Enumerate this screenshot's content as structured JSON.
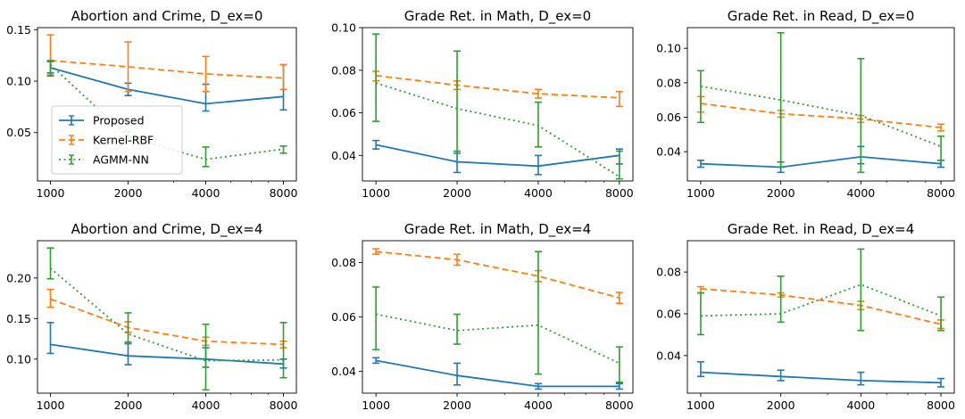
{
  "colors": {
    "Proposed": "#1f77b4",
    "Kernel-RBF": "#ff7f0e",
    "AGMM-NN": "#2ca02c"
  },
  "legend": [
    {
      "name": "Proposed",
      "style": "solid",
      "color": "#1f77b4"
    },
    {
      "name": "Kernel-RBF",
      "style": "dashed",
      "color": "#ff7f0e"
    },
    {
      "name": "AGMM-NN",
      "style": "dotted",
      "color": "#2ca02c"
    }
  ],
  "chart_data": [
    {
      "type": "line",
      "title": "Abortion and Crime, D_ex=0",
      "x": [
        1000,
        2000,
        4000,
        8000
      ],
      "xscale": "log2",
      "xticks": [
        "1000",
        "2000",
        "4000",
        "8000"
      ],
      "ylim": [
        0.003,
        0.152
      ],
      "yticks": [
        0.05,
        0.1,
        0.15
      ],
      "ytick_labels": [
        "0.05",
        "0.10",
        "0.15"
      ],
      "legend_position": "center-left",
      "series": [
        {
          "name": "Proposed",
          "values": [
            0.113,
            0.092,
            0.078,
            0.085
          ],
          "err_low": [
            0.108,
            0.086,
            0.071,
            0.072
          ],
          "err_high": [
            0.119,
            0.098,
            0.097,
            0.116
          ]
        },
        {
          "name": "Kernel-RBF",
          "values": [
            0.12,
            0.114,
            0.107,
            0.103
          ],
          "err_low": [
            0.106,
            0.09,
            0.09,
            0.092
          ],
          "err_high": [
            0.145,
            0.138,
            0.124,
            0.116
          ]
        },
        {
          "name": "AGMM-NN",
          "values": [
            0.116,
            0.046,
            0.024,
            0.034
          ],
          "err_low": [
            0.105,
            0.041,
            0.017,
            0.03
          ],
          "err_high": [
            0.12,
            0.051,
            0.036,
            0.037
          ]
        }
      ]
    },
    {
      "type": "line",
      "title": "Grade Ret. in Math, D_ex=0",
      "x": [
        1000,
        2000,
        4000,
        8000
      ],
      "xscale": "log2",
      "xticks": [
        "1000",
        "2000",
        "4000",
        "8000"
      ],
      "ylim": [
        0.028,
        0.1
      ],
      "yticks": [
        0.04,
        0.06,
        0.08,
        0.1
      ],
      "ytick_labels": [
        "0.04",
        "0.06",
        "0.08",
        "0.10"
      ],
      "series": [
        {
          "name": "Proposed",
          "values": [
            0.045,
            0.037,
            0.035,
            0.04
          ],
          "err_low": [
            0.043,
            0.032,
            0.031,
            0.036
          ],
          "err_high": [
            0.047,
            0.042,
            0.04,
            0.043
          ]
        },
        {
          "name": "Kernel-RBF",
          "values": [
            0.0775,
            0.073,
            0.069,
            0.067
          ],
          "err_low": [
            0.075,
            0.071,
            0.067,
            0.063
          ],
          "err_high": [
            0.0795,
            0.075,
            0.071,
            0.07
          ]
        },
        {
          "name": "AGMM-NN",
          "values": [
            0.074,
            0.062,
            0.054,
            0.03
          ],
          "err_low": [
            0.056,
            0.041,
            0.044,
            0.029
          ],
          "err_high": [
            0.097,
            0.089,
            0.065,
            0.042
          ]
        }
      ]
    },
    {
      "type": "line",
      "title": "Grade Ret. in Read, D_ex=0",
      "x": [
        1000,
        2000,
        4000,
        8000
      ],
      "xscale": "log2",
      "xticks": [
        "1000",
        "2000",
        "4000",
        "8000"
      ],
      "ylim": [
        0.023,
        0.112
      ],
      "yticks": [
        0.04,
        0.06,
        0.08,
        0.1
      ],
      "ytick_labels": [
        "0.04",
        "0.06",
        "0.08",
        "0.10"
      ],
      "series": [
        {
          "name": "Proposed",
          "values": [
            0.033,
            0.031,
            0.037,
            0.033
          ],
          "err_low": [
            0.031,
            0.028,
            0.033,
            0.031
          ],
          "err_high": [
            0.035,
            0.034,
            0.043,
            0.035
          ]
        },
        {
          "name": "Kernel-RBF",
          "values": [
            0.068,
            0.062,
            0.059,
            0.054
          ],
          "err_low": [
            0.063,
            0.06,
            0.057,
            0.052
          ],
          "err_high": [
            0.072,
            0.064,
            0.061,
            0.056
          ]
        },
        {
          "name": "AGMM-NN",
          "values": [
            0.078,
            0.07,
            0.061,
            0.043
          ],
          "err_low": [
            0.057,
            0.031,
            0.028,
            0.035
          ],
          "err_high": [
            0.087,
            0.109,
            0.094,
            0.049
          ]
        }
      ]
    },
    {
      "type": "line",
      "title": "Abortion and Crime, D_ex=4",
      "x": [
        1000,
        2000,
        4000,
        8000
      ],
      "xscale": "log2",
      "xticks": [
        "1000",
        "2000",
        "4000",
        "8000"
      ],
      "ylim": [
        0.058,
        0.246
      ],
      "yticks": [
        0.1,
        0.15,
        0.2
      ],
      "ytick_labels": [
        "0.10",
        "0.15",
        "0.20"
      ],
      "series": [
        {
          "name": "Proposed",
          "values": [
            0.118,
            0.104,
            0.1,
            0.094
          ],
          "err_low": [
            0.107,
            0.093,
            0.09,
            0.089
          ],
          "err_high": [
            0.145,
            0.119,
            0.114,
            0.1
          ]
        },
        {
          "name": "Kernel-RBF",
          "values": [
            0.174,
            0.139,
            0.122,
            0.118
          ],
          "err_low": [
            0.164,
            0.133,
            0.117,
            0.114
          ],
          "err_high": [
            0.186,
            0.146,
            0.127,
            0.122
          ]
        },
        {
          "name": "AGMM-NN",
          "values": [
            0.212,
            0.131,
            0.098,
            0.099
          ],
          "err_low": [
            0.199,
            0.121,
            0.062,
            0.077
          ],
          "err_high": [
            0.237,
            0.157,
            0.143,
            0.145
          ]
        }
      ]
    },
    {
      "type": "line",
      "title": "Grade Ret. in Math, D_ex=4",
      "x": [
        1000,
        2000,
        4000,
        8000
      ],
      "xscale": "log2",
      "xticks": [
        "1000",
        "2000",
        "4000",
        "8000"
      ],
      "ylim": [
        0.032,
        0.088
      ],
      "yticks": [
        0.04,
        0.06,
        0.08
      ],
      "ytick_labels": [
        "0.04",
        "0.06",
        "0.08"
      ],
      "series": [
        {
          "name": "Proposed",
          "values": [
            0.044,
            0.0385,
            0.0345,
            0.0345
          ],
          "err_low": [
            0.043,
            0.035,
            0.0335,
            0.0335
          ],
          "err_high": [
            0.045,
            0.043,
            0.0355,
            0.0355
          ]
        },
        {
          "name": "Kernel-RBF",
          "values": [
            0.084,
            0.081,
            0.075,
            0.067
          ],
          "err_low": [
            0.083,
            0.079,
            0.073,
            0.065
          ],
          "err_high": [
            0.085,
            0.083,
            0.077,
            0.069
          ]
        },
        {
          "name": "AGMM-NN",
          "values": [
            0.061,
            0.055,
            0.057,
            0.043
          ],
          "err_low": [
            0.048,
            0.05,
            0.039,
            0.036
          ],
          "err_high": [
            0.071,
            0.061,
            0.084,
            0.049
          ]
        }
      ]
    },
    {
      "type": "line",
      "title": "Grade Ret. in Read, D_ex=4",
      "x": [
        1000,
        2000,
        4000,
        8000
      ],
      "xscale": "log2",
      "xticks": [
        "1000",
        "2000",
        "4000",
        "8000"
      ],
      "ylim": [
        0.022,
        0.095
      ],
      "yticks": [
        0.04,
        0.06,
        0.08
      ],
      "ytick_labels": [
        "0.04",
        "0.06",
        "0.08"
      ],
      "series": [
        {
          "name": "Proposed",
          "values": [
            0.032,
            0.03,
            0.028,
            0.027
          ],
          "err_low": [
            0.03,
            0.028,
            0.026,
            0.025
          ],
          "err_high": [
            0.037,
            0.033,
            0.032,
            0.029
          ]
        },
        {
          "name": "Kernel-RBF",
          "values": [
            0.072,
            0.069,
            0.064,
            0.055
          ],
          "err_low": [
            0.07,
            0.068,
            0.062,
            0.053
          ],
          "err_high": [
            0.073,
            0.07,
            0.066,
            0.057
          ]
        },
        {
          "name": "AGMM-NN",
          "values": [
            0.059,
            0.06,
            0.074,
            0.059
          ],
          "err_low": [
            0.05,
            0.056,
            0.052,
            0.052
          ],
          "err_high": [
            0.07,
            0.078,
            0.091,
            0.068
          ]
        }
      ]
    }
  ]
}
